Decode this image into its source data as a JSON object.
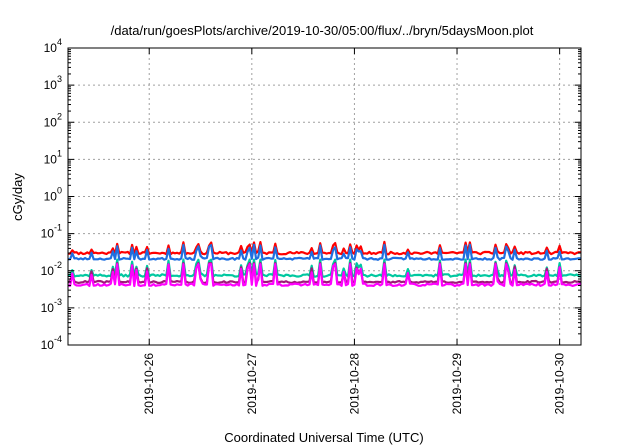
{
  "chart_data": {
    "type": "line",
    "title": "/data/run/goesPlots/archive/2019-10-30/05:00/flux/../bryn/5daysMoon.plot",
    "xlabel": "Coordinated Universal Time (UTC)",
    "ylabel": "cGy/day",
    "y_scale": "log",
    "ylim": [
      0.0001,
      10000
    ],
    "y_ticks": [
      {
        "base": "10",
        "exp": "-4"
      },
      {
        "base": "10",
        "exp": "-3"
      },
      {
        "base": "10",
        "exp": "-2"
      },
      {
        "base": "10",
        "exp": "-1"
      },
      {
        "base": "10",
        "exp": "0"
      },
      {
        "base": "10",
        "exp": "1"
      },
      {
        "base": "10",
        "exp": "2"
      },
      {
        "base": "10",
        "exp": "3"
      },
      {
        "base": "10",
        "exp": "4"
      }
    ],
    "xlim": [
      "2019-10-25T05:00",
      "2019-10-30T05:00"
    ],
    "x_ticks": [
      "2019-10-26",
      "2019-10-27",
      "2019-10-28",
      "2019-10-29",
      "2019-10-30"
    ],
    "grid": true,
    "series": [
      {
        "color": "#ff0000",
        "base": 0.03,
        "spike": 0.06,
        "amp": 0.7,
        "spread": 0.15,
        "seed": 11
      },
      {
        "color": "#1f6fe0",
        "base": 0.021,
        "spike": 0.05,
        "amp": 0.75,
        "spread": 0.12,
        "seed": 23
      },
      {
        "color": "#00c8a0",
        "base": 0.0075,
        "spike": 0.02,
        "amp": 0.9,
        "spread": 0.15,
        "seed": 37
      },
      {
        "color": "#a0187a",
        "base": 0.005,
        "spike": 0.016,
        "amp": 1.0,
        "spread": 0.12,
        "seed": 41
      },
      {
        "color": "#ff00ff",
        "base": 0.0042,
        "spike": 0.015,
        "amp": 1.1,
        "spread": 0.15,
        "seed": 53
      }
    ]
  }
}
